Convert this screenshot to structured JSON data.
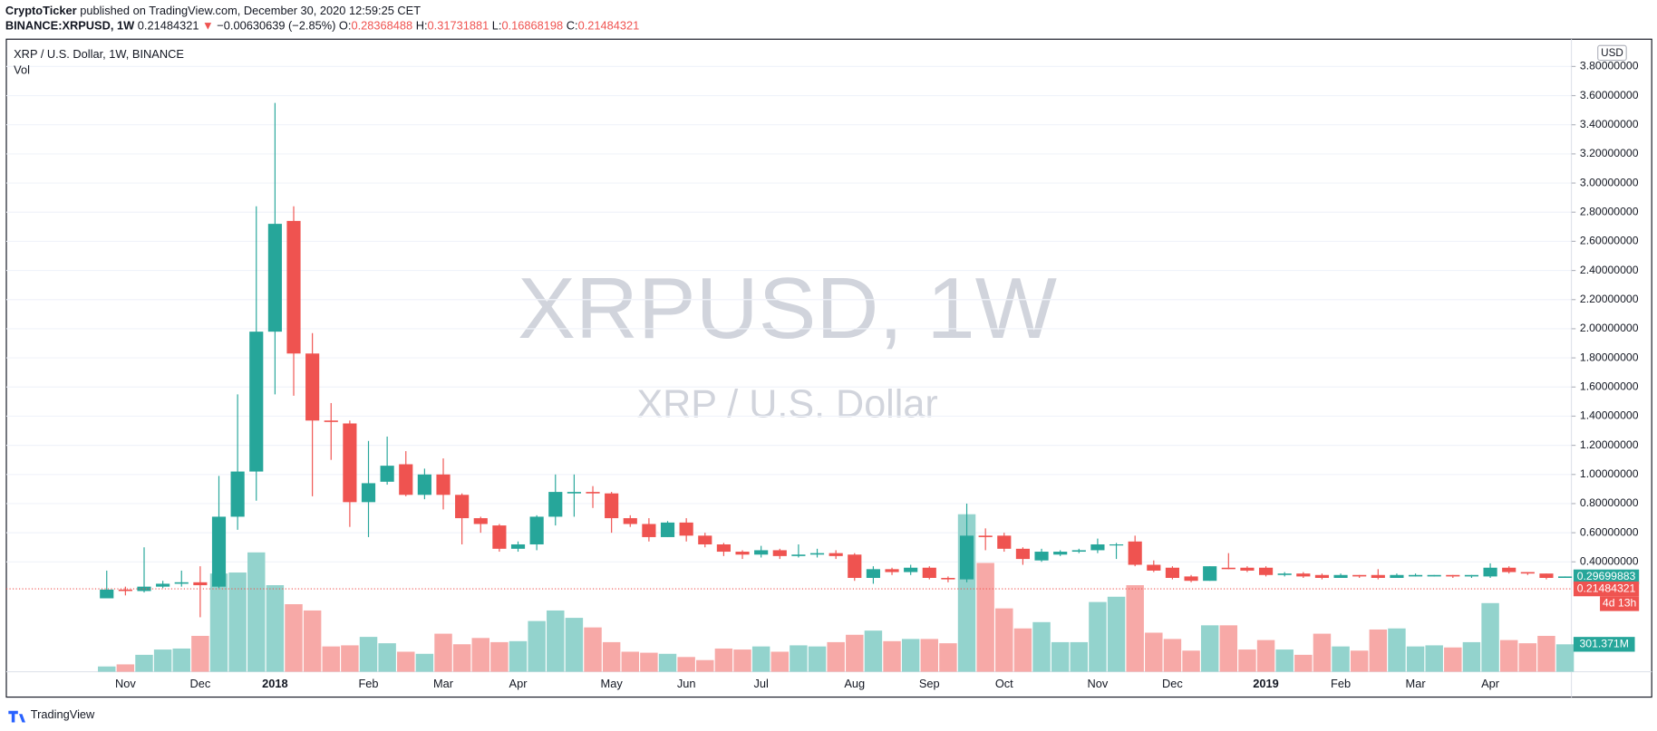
{
  "header": {
    "author": "CryptoTicker",
    "published": "published on TradingView.com, December 30, 2020 12:59:25 CET",
    "symbol": "BINANCE:XRPUSD, 1W",
    "last": "0.21484321",
    "arrow": "▼",
    "change": "−0.00630639 (−2.85%)",
    "ohlc": [
      {
        "key": "O:",
        "value": "0.28368488"
      },
      {
        "key": "H:",
        "value": "0.31731881"
      },
      {
        "key": "L:",
        "value": "0.16868198"
      },
      {
        "key": "C:",
        "value": "0.21484321"
      }
    ]
  },
  "chart_data": {
    "type": "candlestick",
    "title": "XRP / U.S. Dollar, 1W, BINANCE",
    "volume_title": "Vol",
    "currency": "USD",
    "watermark": "XRPUSD, 1W",
    "watermark_subtitle": "XRP / U.S. Dollar",
    "up_color": "#26a69a",
    "down_color": "#ef5350",
    "volume_up_color": "#93d3cd",
    "volume_down_color": "#f7a9a7",
    "categories": [
      null,
      "Nov",
      null,
      null,
      null,
      "Dec",
      null,
      null,
      null,
      "2018",
      null,
      null,
      null,
      null,
      "Feb",
      null,
      null,
      null,
      "Mar",
      null,
      null,
      null,
      "Apr",
      null,
      null,
      null,
      null,
      "May",
      null,
      null,
      null,
      "Jun",
      null,
      null,
      null,
      "Jul",
      null,
      null,
      null,
      null,
      "Aug",
      null,
      null,
      null,
      "Sep",
      null,
      null,
      null,
      "Oct",
      null,
      null,
      null,
      null,
      "Nov",
      null,
      null,
      null,
      "Dec",
      null,
      null,
      null,
      null,
      "2019",
      null,
      null,
      null,
      "Feb",
      null,
      null,
      null,
      "Mar",
      null,
      null,
      null,
      "Apr",
      null,
      null,
      null,
      null
    ],
    "open": [
      0.15,
      0.21,
      0.2,
      0.23,
      0.25,
      0.26,
      0.23,
      0.71,
      1.02,
      1.98,
      2.74,
      1.83,
      1.37,
      1.35,
      0.81,
      0.95,
      1.07,
      0.86,
      1.0,
      0.86,
      0.7,
      0.65,
      0.49,
      0.52,
      0.71,
      0.87,
      0.88,
      0.87,
      0.7,
      0.66,
      0.57,
      0.67,
      0.58,
      0.52,
      0.47,
      0.45,
      0.48,
      0.44,
      0.45,
      0.46,
      0.45,
      0.29,
      0.35,
      0.33,
      0.36,
      0.29,
      0.28,
      0.58,
      0.58,
      0.49,
      0.41,
      0.45,
      0.47,
      0.48,
      0.52,
      0.54,
      0.38,
      0.36,
      0.3,
      0.27,
      0.36,
      0.36,
      0.36,
      0.31,
      0.32,
      0.31,
      0.29,
      0.31,
      0.31,
      0.29,
      0.3,
      0.3,
      0.31,
      0.3,
      0.3,
      0.36,
      0.33,
      0.32,
      0.29
    ],
    "high": [
      0.34,
      0.23,
      0.5,
      0.27,
      0.34,
      0.37,
      0.99,
      1.55,
      2.84,
      3.55,
      2.84,
      1.97,
      1.49,
      1.37,
      1.23,
      1.26,
      1.16,
      1.04,
      1.11,
      0.87,
      0.71,
      0.66,
      0.54,
      0.72,
      1.0,
      1.0,
      0.92,
      0.88,
      0.72,
      0.7,
      0.68,
      0.7,
      0.6,
      0.53,
      0.48,
      0.51,
      0.49,
      0.52,
      0.49,
      0.48,
      0.46,
      0.37,
      0.36,
      0.38,
      0.37,
      0.3,
      0.8,
      0.63,
      0.6,
      0.5,
      0.49,
      0.48,
      0.49,
      0.56,
      0.53,
      0.58,
      0.41,
      0.37,
      0.31,
      0.37,
      0.46,
      0.37,
      0.37,
      0.33,
      0.33,
      0.32,
      0.32,
      0.31,
      0.35,
      0.32,
      0.32,
      0.31,
      0.31,
      0.31,
      0.39,
      0.37,
      0.33,
      0.32,
      0.3
    ],
    "low": [
      0.15,
      0.17,
      0.19,
      0.22,
      0.23,
      0.02,
      0.22,
      0.62,
      0.82,
      1.55,
      1.54,
      0.85,
      1.1,
      0.64,
      0.57,
      0.93,
      0.85,
      0.83,
      0.76,
      0.52,
      0.6,
      0.47,
      0.47,
      0.48,
      0.65,
      0.71,
      0.77,
      0.6,
      0.64,
      0.54,
      0.57,
      0.54,
      0.5,
      0.44,
      0.42,
      0.43,
      0.42,
      0.43,
      0.43,
      0.42,
      0.27,
      0.25,
      0.31,
      0.31,
      0.28,
      0.26,
      0.26,
      0.48,
      0.47,
      0.38,
      0.4,
      0.44,
      0.46,
      0.46,
      0.42,
      0.37,
      0.33,
      0.28,
      0.26,
      0.27,
      0.35,
      0.33,
      0.3,
      0.3,
      0.29,
      0.28,
      0.29,
      0.29,
      0.28,
      0.29,
      0.3,
      0.3,
      0.29,
      0.29,
      0.29,
      0.32,
      0.31,
      0.28,
      0.29
    ],
    "close": [
      0.21,
      0.2,
      0.23,
      0.25,
      0.26,
      0.24,
      0.71,
      1.02,
      1.98,
      2.72,
      1.83,
      1.37,
      1.36,
      0.81,
      0.94,
      1.06,
      0.86,
      1.0,
      0.86,
      0.7,
      0.66,
      0.49,
      0.52,
      0.71,
      0.88,
      0.88,
      0.87,
      0.7,
      0.66,
      0.57,
      0.67,
      0.58,
      0.52,
      0.47,
      0.45,
      0.48,
      0.44,
      0.45,
      0.46,
      0.44,
      0.29,
      0.35,
      0.33,
      0.36,
      0.29,
      0.28,
      0.58,
      0.57,
      0.49,
      0.42,
      0.47,
      0.47,
      0.48,
      0.52,
      0.52,
      0.38,
      0.34,
      0.29,
      0.27,
      0.37,
      0.35,
      0.34,
      0.31,
      0.32,
      0.3,
      0.29,
      0.31,
      0.3,
      0.29,
      0.31,
      0.31,
      0.31,
      0.3,
      0.31,
      0.36,
      0.33,
      0.32,
      0.29,
      0.3
    ],
    "volume": {
      "values": [
        58,
        81,
        186,
        244,
        255,
        394,
        1079,
        1090,
        1311,
        951,
        742,
        673,
        278,
        290,
        383,
        313,
        220,
        197,
        418,
        302,
        371,
        325,
        336,
        557,
        673,
        592,
        487,
        325,
        220,
        209,
        197,
        162,
        128,
        255,
        244,
        278,
        220,
        290,
        278,
        325,
        406,
        452,
        336,
        360,
        360,
        313,
        1730,
        1195,
        696,
        476,
        545,
        325,
        325,
        766,
        824,
        951,
        429,
        360,
        232,
        510,
        510,
        244,
        348,
        244,
        186,
        418,
        278,
        232,
        464,
        476,
        278,
        290,
        267,
        325,
        754,
        348,
        313,
        394,
        301.371
      ],
      "last_label": "301.371M"
    },
    "vlim": [
      0,
      1740
    ],
    "ylim": [
      -0.354,
      3.98
    ],
    "yticks": [
      {
        "value": 0.4,
        "label": "0.40000000"
      },
      {
        "value": 0.6,
        "label": "0.60000000"
      },
      {
        "value": 0.8,
        "label": "0.80000000"
      },
      {
        "value": 1.0,
        "label": "1.00000000"
      },
      {
        "value": 1.2,
        "label": "1.20000000"
      },
      {
        "value": 1.4,
        "label": "1.40000000"
      },
      {
        "value": 1.6,
        "label": "1.60000000"
      },
      {
        "value": 1.8,
        "label": "1.80000000"
      },
      {
        "value": 2.0,
        "label": "2.00000000"
      },
      {
        "value": 2.2,
        "label": "2.20000000"
      },
      {
        "value": 2.4,
        "label": "2.40000000"
      },
      {
        "value": 2.6,
        "label": "2.60000000"
      },
      {
        "value": 2.8,
        "label": "2.80000000"
      },
      {
        "value": 3.0,
        "label": "3.00000000"
      },
      {
        "value": 3.2,
        "label": "3.20000000"
      },
      {
        "value": 3.4,
        "label": "3.40000000"
      },
      {
        "value": 3.6,
        "label": "3.60000000"
      },
      {
        "value": 3.8,
        "label": "3.80000000"
      }
    ],
    "grid": true,
    "price_labels": [
      0.29699883,
      0.21484321
    ],
    "price_label_colors": [
      "#26a69a",
      "#ef5350"
    ],
    "countdown": "4d 13h"
  },
  "footer": {
    "brand": "TradingView"
  }
}
